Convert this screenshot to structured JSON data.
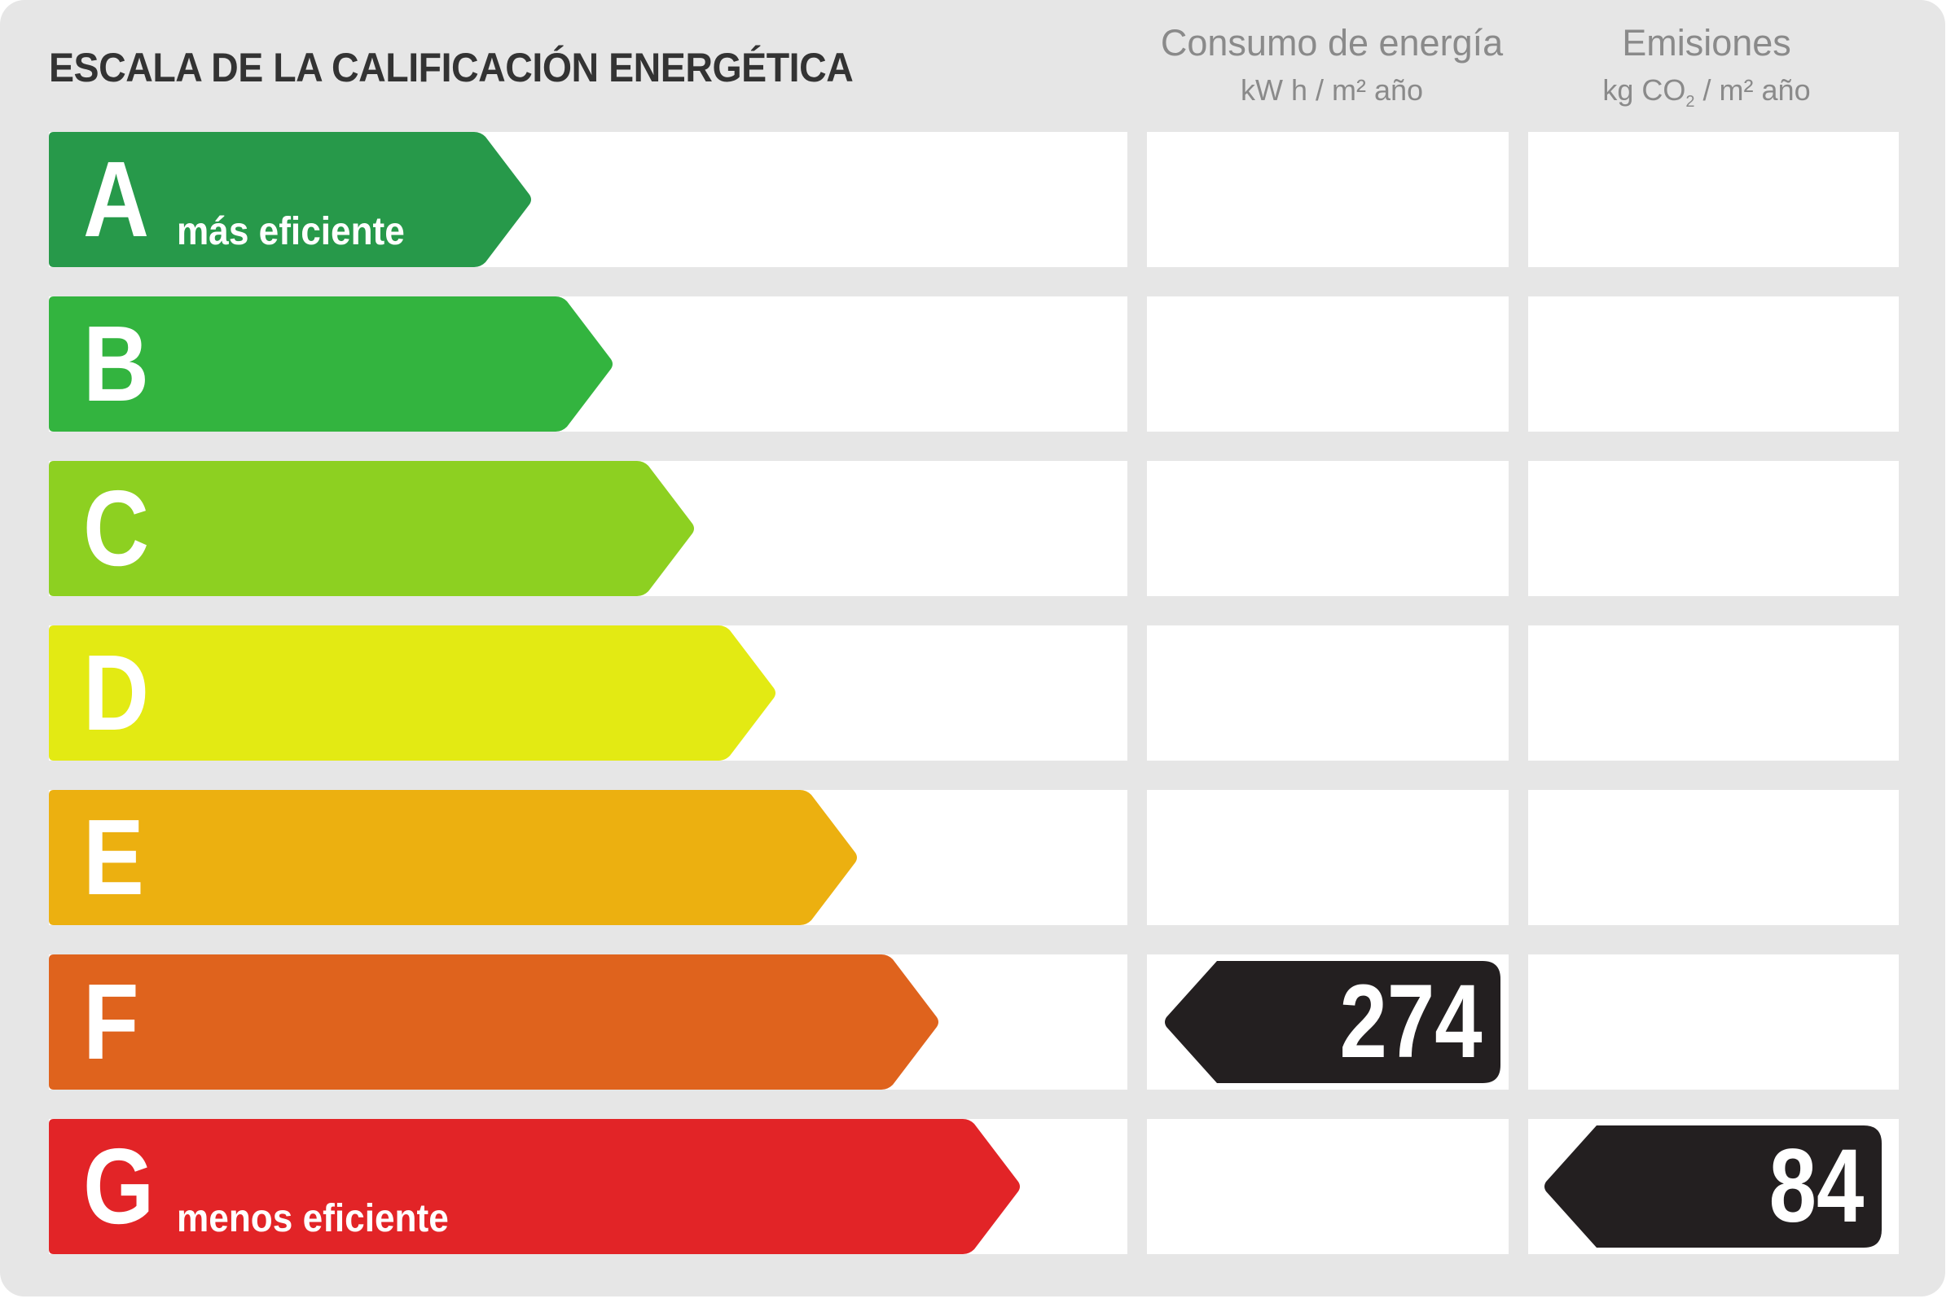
{
  "title": "ESCALA DE LA CALIFICACIÓN ENERGÉTICA",
  "columns": {
    "energy": {
      "heading": "Consumo de energía",
      "unit": "kW h / m² año"
    },
    "emissions": {
      "heading": "Emisiones",
      "unit_prefix": "kg CO",
      "unit_sub": "2",
      "unit_suffix": " / m² año"
    }
  },
  "ratings": [
    {
      "letter": "A",
      "label": "más eficiente",
      "color": "#27994a"
    },
    {
      "letter": "B",
      "label": "",
      "color": "#33b43f"
    },
    {
      "letter": "C",
      "label": "",
      "color": "#8dd021"
    },
    {
      "letter": "D",
      "label": "",
      "color": "#e3ea13"
    },
    {
      "letter": "E",
      "label": "",
      "color": "#ecb010"
    },
    {
      "letter": "F",
      "label": "",
      "color": "#df631d"
    },
    {
      "letter": "G",
      "label": "menos eficiente",
      "color": "#e22427"
    }
  ],
  "result": {
    "energy_rating": "F",
    "energy_value": "274",
    "emissions_rating": "G",
    "emissions_value": "84",
    "indicator_color": "#231f20"
  },
  "colors": {
    "panel_background": "#e6e6e6",
    "title_text": "#333333",
    "header_text": "#8a8a8a"
  }
}
